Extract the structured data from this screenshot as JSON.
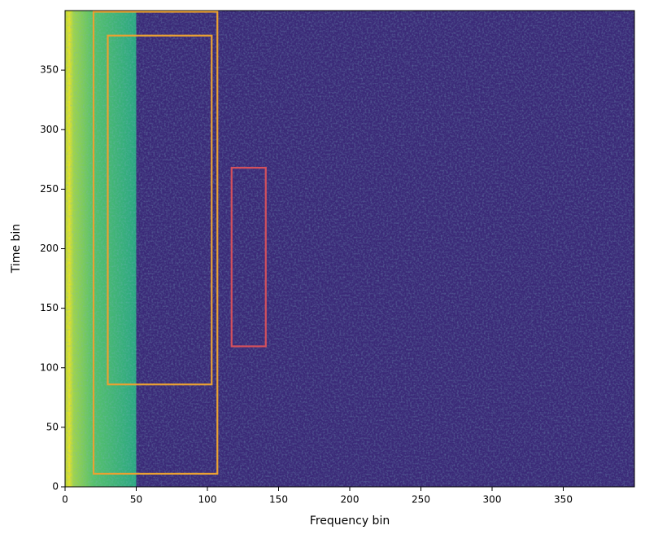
{
  "chart_data": {
    "type": "spectrogram",
    "xlabel": "Frequency bin",
    "ylabel": "Time bin",
    "xlim": [
      0,
      400
    ],
    "ylim": [
      0,
      400
    ],
    "xticks": [
      0,
      50,
      100,
      150,
      200,
      250,
      300,
      350
    ],
    "yticks": [
      0,
      50,
      100,
      150,
      200,
      250,
      300,
      350
    ],
    "boxes": [
      {
        "x0": 20,
        "x1": 107,
        "y0": 11,
        "y1": 399,
        "color": "#eaa132"
      },
      {
        "x0": 30,
        "x1": 103,
        "y0": 86,
        "y1": 379,
        "color": "#eaa132"
      },
      {
        "x0": 117,
        "x1": 141,
        "y0": 118,
        "y1": 268,
        "color": "#d4505c"
      }
    ]
  }
}
